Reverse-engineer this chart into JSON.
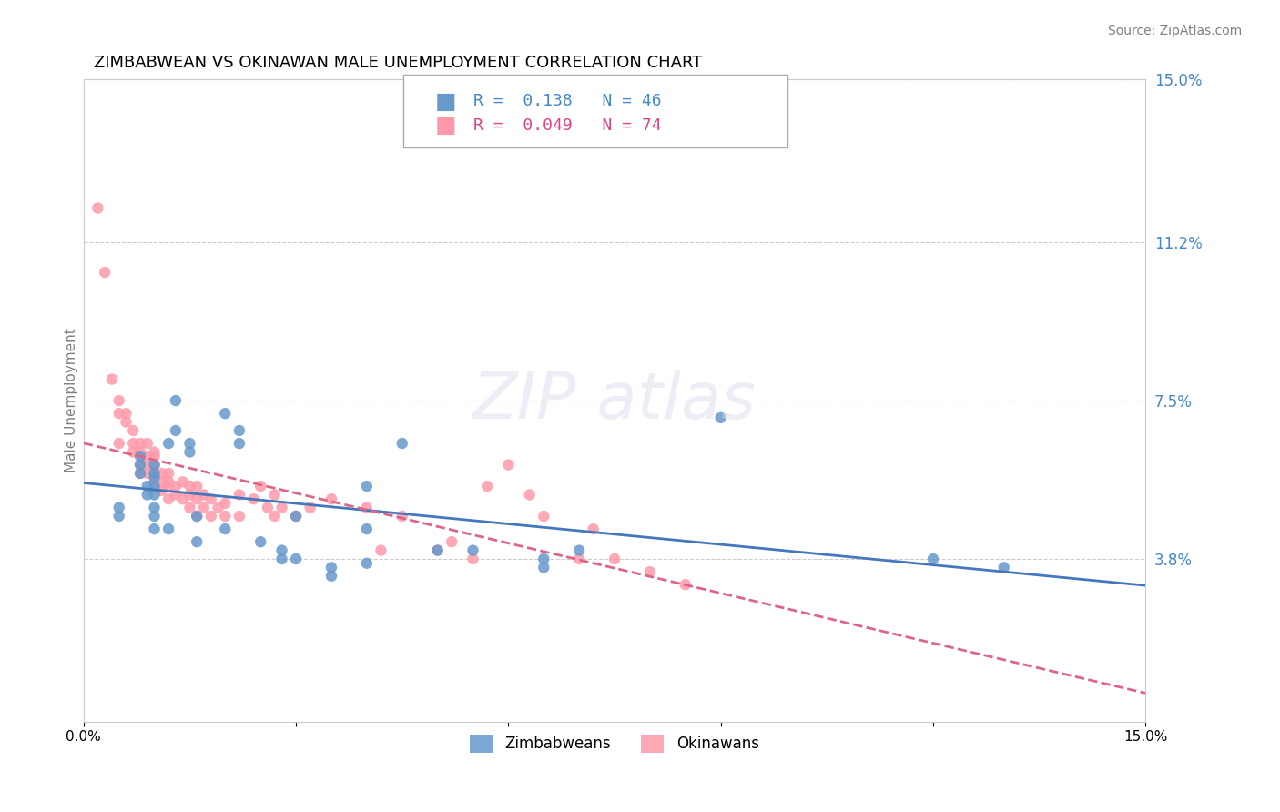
{
  "title": "ZIMBABWEAN VS OKINAWAN MALE UNEMPLOYMENT CORRELATION CHART",
  "source": "Source: ZipAtlas.com",
  "xlabel": "",
  "ylabel": "Male Unemployment",
  "x_min": 0.0,
  "x_max": 0.15,
  "y_min": 0.0,
  "y_max": 0.15,
  "x_ticks": [
    0.0,
    0.15
  ],
  "x_tick_labels": [
    "0.0%",
    "15.0%"
  ],
  "y_tick_labels_right": [
    "15.0%",
    "11.2%",
    "7.5%",
    "3.8%"
  ],
  "y_tick_positions_right": [
    0.15,
    0.112,
    0.075,
    0.038
  ],
  "legend_labels": [
    "Zimbabweans",
    "Okinawans"
  ],
  "blue_color": "#6699CC",
  "pink_color": "#FF99AA",
  "blue_line_color": "#4477BB",
  "pink_line_color": "#DD6688",
  "r_blue": 0.138,
  "n_blue": 46,
  "r_pink": 0.049,
  "n_pink": 74,
  "zimbabwe_x": [
    0.005,
    0.005,
    0.008,
    0.008,
    0.008,
    0.009,
    0.009,
    0.01,
    0.01,
    0.01,
    0.01,
    0.01,
    0.01,
    0.01,
    0.01,
    0.012,
    0.012,
    0.013,
    0.013,
    0.015,
    0.015,
    0.016,
    0.016,
    0.02,
    0.02,
    0.022,
    0.022,
    0.025,
    0.028,
    0.028,
    0.03,
    0.03,
    0.035,
    0.035,
    0.04,
    0.04,
    0.04,
    0.045,
    0.05,
    0.055,
    0.065,
    0.065,
    0.07,
    0.09,
    0.12,
    0.13
  ],
  "zimbabwe_y": [
    0.05,
    0.048,
    0.062,
    0.06,
    0.058,
    0.055,
    0.053,
    0.06,
    0.058,
    0.057,
    0.055,
    0.053,
    0.05,
    0.048,
    0.045,
    0.065,
    0.045,
    0.075,
    0.068,
    0.065,
    0.063,
    0.048,
    0.042,
    0.072,
    0.045,
    0.068,
    0.065,
    0.042,
    0.04,
    0.038,
    0.048,
    0.038,
    0.036,
    0.034,
    0.055,
    0.045,
    0.037,
    0.065,
    0.04,
    0.04,
    0.038,
    0.036,
    0.04,
    0.071,
    0.038,
    0.036
  ],
  "okinawa_x": [
    0.002,
    0.003,
    0.004,
    0.005,
    0.005,
    0.005,
    0.006,
    0.006,
    0.007,
    0.007,
    0.007,
    0.008,
    0.008,
    0.008,
    0.008,
    0.009,
    0.009,
    0.009,
    0.009,
    0.01,
    0.01,
    0.01,
    0.01,
    0.01,
    0.011,
    0.011,
    0.011,
    0.012,
    0.012,
    0.012,
    0.012,
    0.013,
    0.013,
    0.014,
    0.014,
    0.015,
    0.015,
    0.015,
    0.016,
    0.016,
    0.016,
    0.017,
    0.017,
    0.018,
    0.018,
    0.019,
    0.02,
    0.02,
    0.022,
    0.022,
    0.024,
    0.025,
    0.026,
    0.027,
    0.027,
    0.028,
    0.03,
    0.032,
    0.035,
    0.04,
    0.042,
    0.045,
    0.05,
    0.052,
    0.055,
    0.057,
    0.06,
    0.063,
    0.065,
    0.07,
    0.072,
    0.075,
    0.08,
    0.085
  ],
  "okinawa_y": [
    0.12,
    0.105,
    0.08,
    0.075,
    0.072,
    0.065,
    0.072,
    0.07,
    0.068,
    0.065,
    0.063,
    0.065,
    0.063,
    0.06,
    0.058,
    0.065,
    0.062,
    0.06,
    0.058,
    0.063,
    0.062,
    0.06,
    0.058,
    0.056,
    0.058,
    0.056,
    0.054,
    0.058,
    0.056,
    0.055,
    0.052,
    0.055,
    0.053,
    0.056,
    0.052,
    0.055,
    0.053,
    0.05,
    0.055,
    0.052,
    0.048,
    0.053,
    0.05,
    0.052,
    0.048,
    0.05,
    0.051,
    0.048,
    0.053,
    0.048,
    0.052,
    0.055,
    0.05,
    0.053,
    0.048,
    0.05,
    0.048,
    0.05,
    0.052,
    0.05,
    0.04,
    0.048,
    0.04,
    0.042,
    0.038,
    0.055,
    0.06,
    0.053,
    0.048,
    0.038,
    0.045,
    0.038,
    0.035,
    0.032
  ]
}
